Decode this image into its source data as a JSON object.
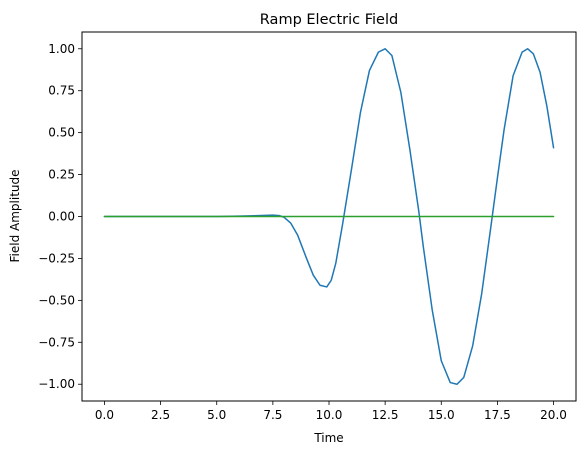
{
  "chart_data": {
    "type": "line",
    "title": "Ramp Electric Field",
    "xlabel": "Time",
    "ylabel": "Field Amplitude",
    "xlim": [
      -1.0,
      21.0
    ],
    "ylim": [
      -1.1,
      1.1
    ],
    "xticks": [
      0.0,
      2.5,
      5.0,
      7.5,
      10.0,
      12.5,
      15.0,
      17.5,
      20.0
    ],
    "xtick_labels": [
      "0.0",
      "2.5",
      "5.0",
      "7.5",
      "10.0",
      "12.5",
      "15.0",
      "17.5",
      "20.0"
    ],
    "yticks": [
      1.0,
      0.75,
      0.5,
      0.25,
      0.0,
      -0.25,
      -0.5,
      -0.75,
      -1.0
    ],
    "ytick_labels": [
      "1.00",
      "0.75",
      "0.50",
      "0.25",
      "0.00",
      "−0.25",
      "−0.50",
      "−0.75",
      "−1.00"
    ],
    "grid": false,
    "series": [
      {
        "color": "#1f77b4",
        "x": [
          0.0,
          5.0,
          6.0,
          7.0,
          7.5,
          7.8,
          8.0,
          8.3,
          8.6,
          9.0,
          9.3,
          9.6,
          9.9,
          10.1,
          10.3,
          10.6,
          11.0,
          11.4,
          11.8,
          12.2,
          12.5,
          12.8,
          13.2,
          13.6,
          14.0,
          14.2,
          14.6,
          15.0,
          15.4,
          15.7,
          16.0,
          16.4,
          16.8,
          17.2,
          17.5,
          17.8,
          18.2,
          18.6,
          18.85,
          19.1,
          19.4,
          19.7,
          20.0
        ],
        "y": [
          0.0,
          0.0,
          0.002,
          0.006,
          0.008,
          0.005,
          -0.005,
          -0.04,
          -0.11,
          -0.25,
          -0.35,
          -0.41,
          -0.42,
          -0.38,
          -0.28,
          -0.05,
          0.28,
          0.62,
          0.87,
          0.98,
          1.0,
          0.96,
          0.74,
          0.4,
          0.03,
          -0.18,
          -0.56,
          -0.86,
          -0.99,
          -1.0,
          -0.96,
          -0.77,
          -0.46,
          -0.07,
          0.23,
          0.52,
          0.84,
          0.98,
          1.0,
          0.97,
          0.86,
          0.66,
          0.41
        ]
      },
      {
        "color": "#2ca02c",
        "x": [
          0.0,
          20.0
        ],
        "y": [
          0.0,
          0.0
        ]
      }
    ]
  }
}
